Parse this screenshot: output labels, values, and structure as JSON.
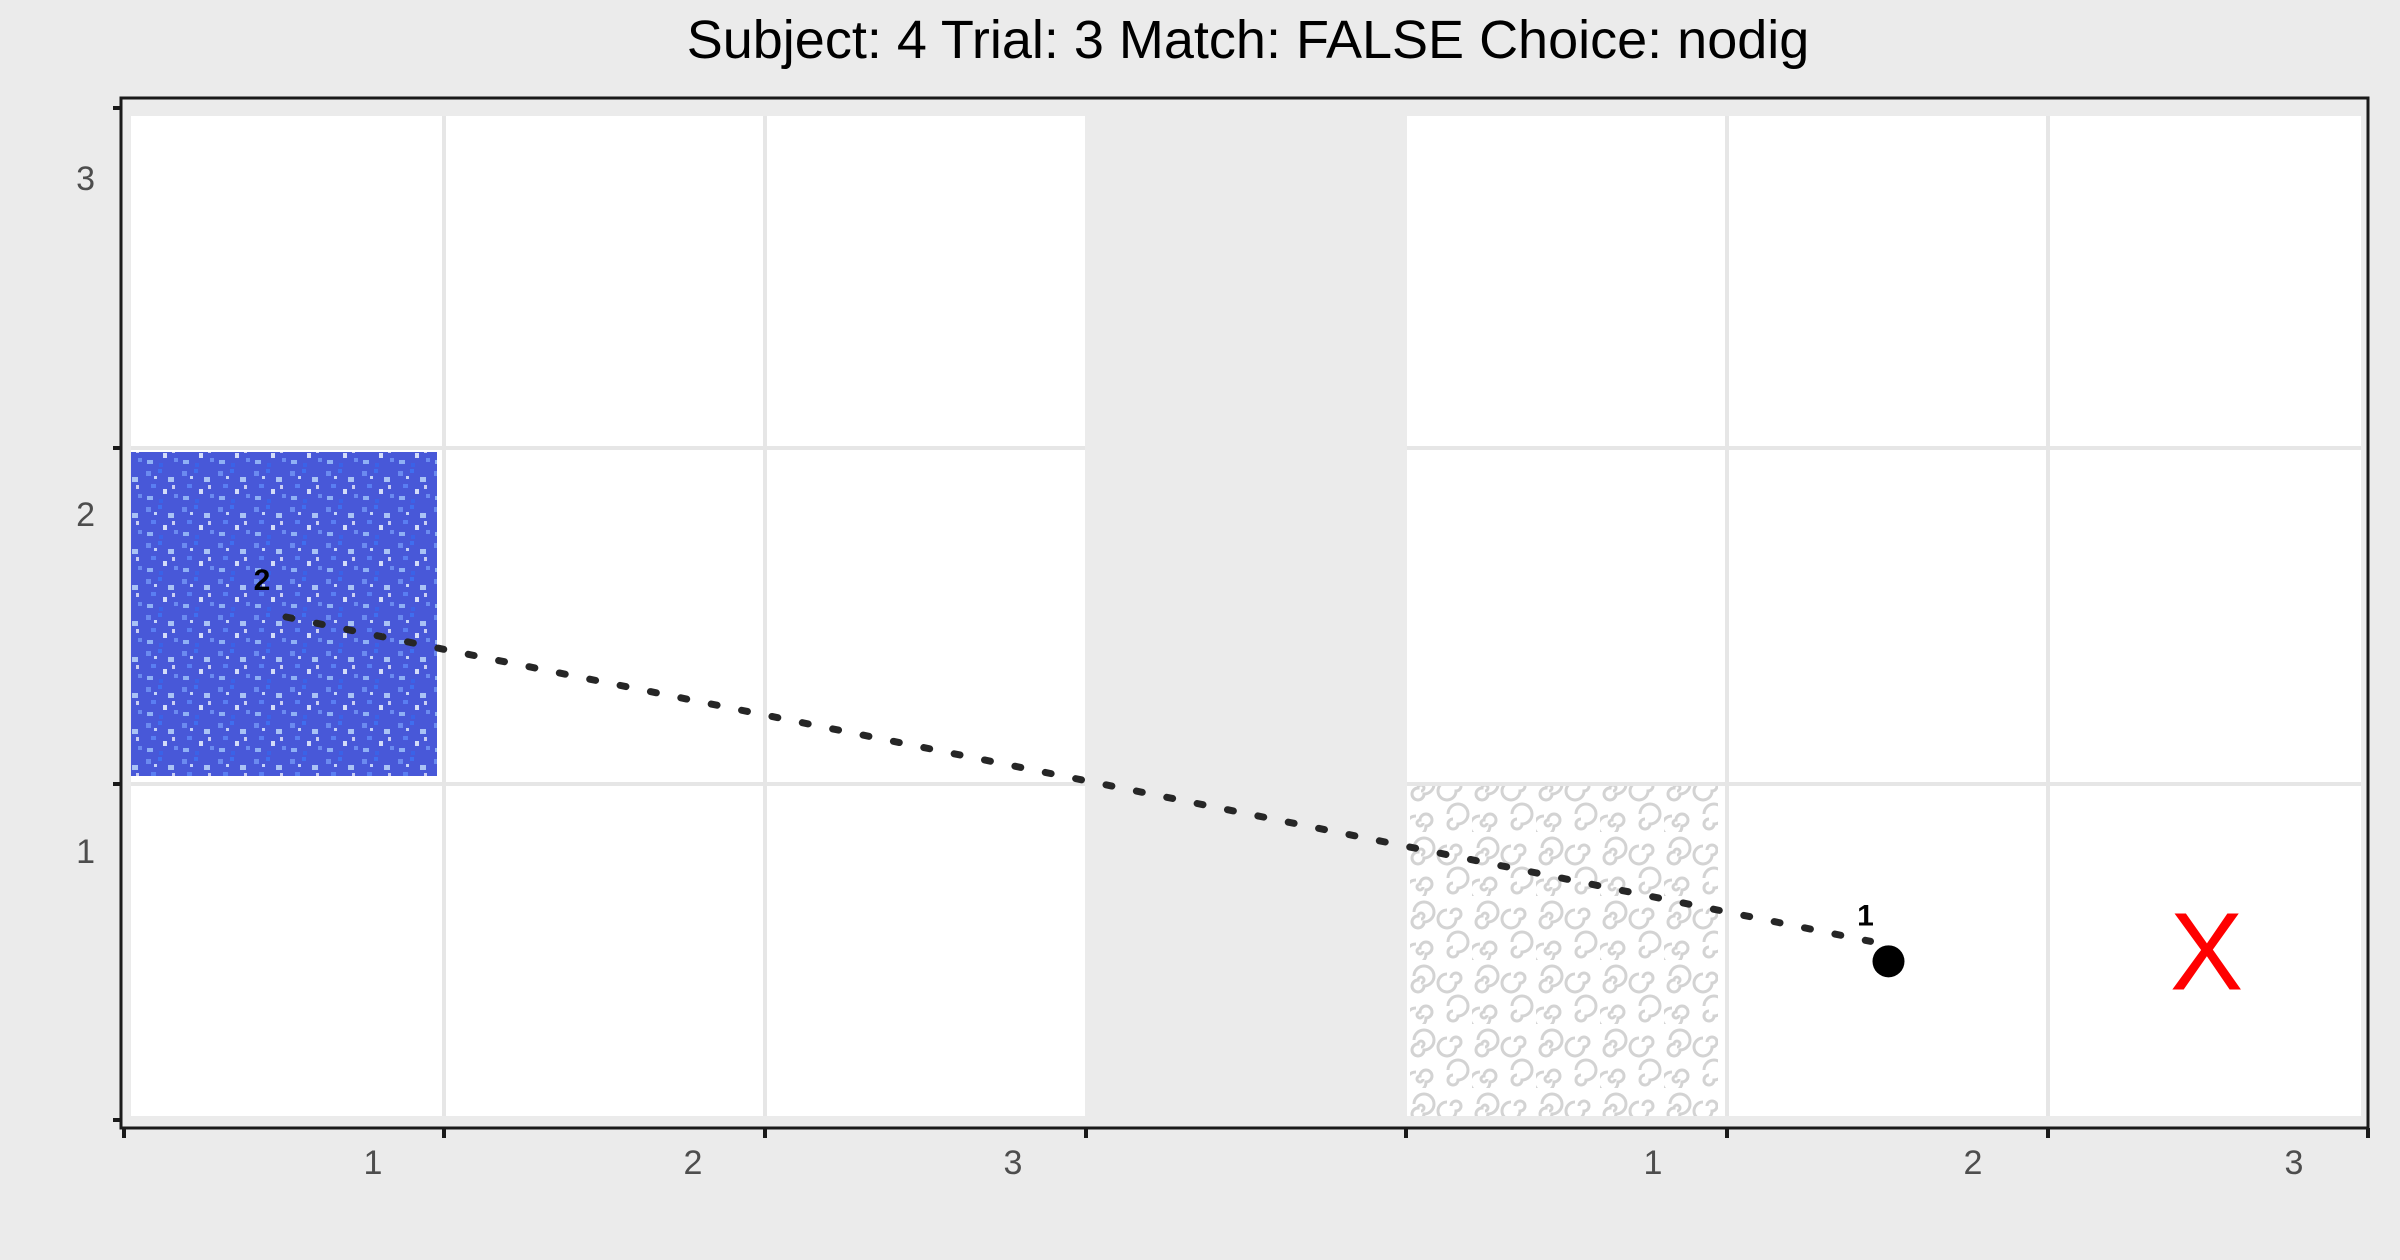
{
  "chart_data": {
    "type": "scatter",
    "title": "Subject:  4  Trial:  3  Match: FALSE  Choice: nodig",
    "xlabel": "",
    "ylabel": "",
    "x_tick_labels": [
      "1",
      "2",
      "3",
      "1",
      "2",
      "3"
    ],
    "y_tick_labels": [
      "1",
      "2",
      "3"
    ],
    "grids": [
      {
        "name": "left-grid",
        "columns": 3,
        "rows": 3
      },
      {
        "name": "right-grid",
        "columns": 3,
        "rows": 3
      }
    ],
    "tiles": [
      {
        "grid": "left",
        "col": 1,
        "row": 2,
        "texture": "blue-noise",
        "color": "#4858d8"
      },
      {
        "grid": "right",
        "col": 1,
        "row": 1,
        "texture": "grey-swirl",
        "color": "#d0d0d0"
      }
    ],
    "path": [
      {
        "label": "2",
        "grid": "left",
        "x": 1.48,
        "y": 1.62
      },
      {
        "label": "1",
        "grid": "right",
        "x": 1.5,
        "y": 0.5
      }
    ],
    "current_position": {
      "grid": "right",
      "x": 1.5,
      "y": 0.5
    },
    "x_mark": {
      "grid": "right",
      "x": 2.5,
      "y": 0.5,
      "text": "X",
      "color": "#ff0000"
    },
    "grid": true,
    "legend": "none"
  }
}
